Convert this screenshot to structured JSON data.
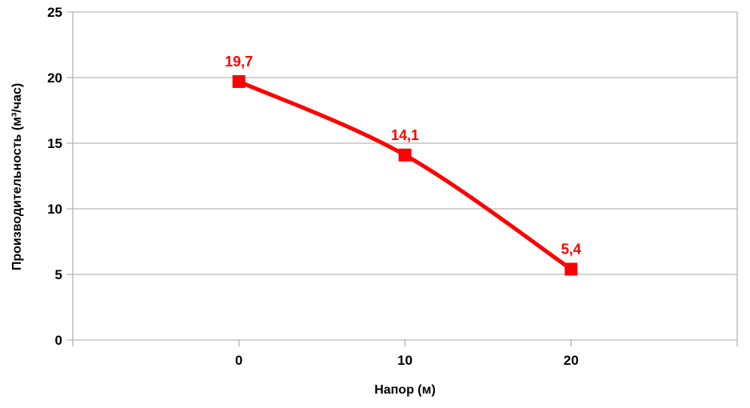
{
  "chart_data": {
    "type": "line",
    "title": "",
    "xlabel": "Напор (м)",
    "ylabel": "Производительность (м³/час)",
    "x": [
      0,
      10,
      20
    ],
    "series": [
      {
        "name": "Производительность",
        "values": [
          19.7,
          14.1,
          5.4
        ],
        "point_labels": [
          "19,7",
          "14,1",
          "5,4"
        ]
      }
    ],
    "xlim": [
      -10,
      30
    ],
    "ylim": [
      0,
      25
    ],
    "xticks": [
      0,
      10,
      20
    ],
    "xtick_labels": [
      "0",
      "10",
      "20"
    ],
    "yticks": [
      0,
      5,
      10,
      15,
      20,
      25
    ],
    "ytick_labels": [
      "0",
      "5",
      "10",
      "15",
      "20",
      "25"
    ],
    "grid": "horizontal",
    "legend": "none",
    "line_color": "#ff0000",
    "marker": "square",
    "marker_color": "#ff0000",
    "point_label_color": "#ff0000",
    "axis_color": "#b3b3b3",
    "grid_color": "#b9b9b9",
    "text_color": "#000000",
    "background_color": "#ffffff"
  }
}
